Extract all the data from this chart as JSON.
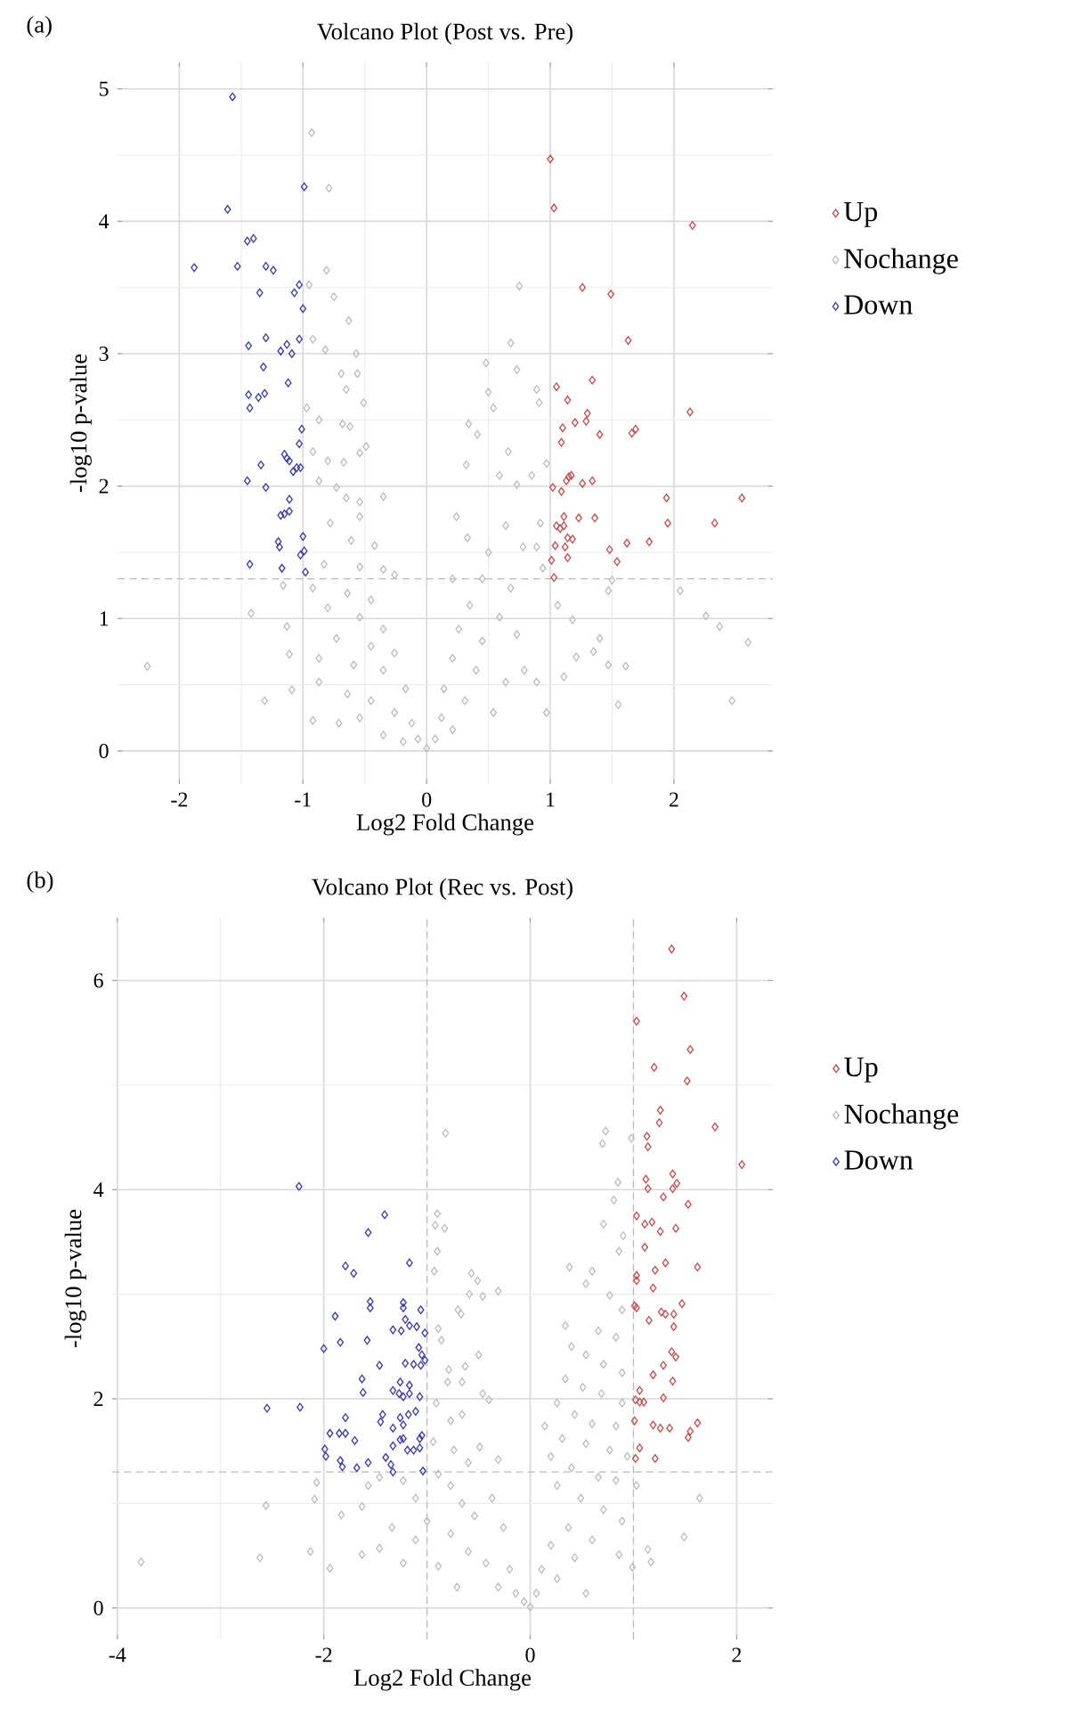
{
  "chart_data": [
    {
      "type": "scatter",
      "title": "Volcano Plot (Post vs. Pre)",
      "xlabel": "Log2 Fold Change",
      "ylabel": "-log10 p-value",
      "annotations": [
        "(a)"
      ],
      "xlim": [
        -2.5,
        2.8
      ],
      "ylim": [
        -0.25,
        5.2
      ],
      "xticks": [
        -2,
        -1,
        0,
        1,
        2
      ],
      "yticks": [
        0,
        1,
        2,
        3,
        4,
        5
      ],
      "grid": true,
      "legend": "right",
      "marker": "diamond",
      "ref_lines": [
        {
          "axis": "y",
          "value": 1.3,
          "color": "#bbbbbb",
          "line_style": "dashed"
        }
      ],
      "series": [
        {
          "name": "Up",
          "color": "#d04a4a",
          "x": [
            1.0,
            1.03,
            2.15,
            1.26,
            1.49,
            1.63,
            1.34,
            1.05,
            1.14,
            2.13,
            1.3,
            1.2,
            1.29,
            1.1,
            1.4,
            1.66,
            1.69,
            1.09,
            1.15,
            1.17,
            1.13,
            1.26,
            1.34,
            1.02,
            1.09,
            1.94,
            2.55,
            1.11,
            1.23,
            1.36,
            1.05,
            1.08,
            1.11,
            1.95,
            2.33,
            1.14,
            1.18,
            1.04,
            1.12,
            1.48,
            1.62,
            1.8,
            1.01,
            1.14,
            1.54,
            1.03
          ],
          "values": [
            4.47,
            4.1,
            3.97,
            3.5,
            3.45,
            3.1,
            2.8,
            2.75,
            2.65,
            2.56,
            2.55,
            2.48,
            2.49,
            2.44,
            2.39,
            2.4,
            2.43,
            2.33,
            2.07,
            2.08,
            2.04,
            2.02,
            2.04,
            1.99,
            1.96,
            1.91,
            1.91,
            1.77,
            1.76,
            1.76,
            1.7,
            1.68,
            1.7,
            1.72,
            1.72,
            1.61,
            1.6,
            1.55,
            1.54,
            1.52,
            1.57,
            1.58,
            1.44,
            1.46,
            1.43,
            1.31
          ]
        },
        {
          "name": "Nochange",
          "color": "#bdbdbd",
          "x": [
            -0.93,
            -0.79,
            -0.81,
            -0.95,
            -0.75,
            -0.63,
            -0.92,
            -0.82,
            -0.57,
            -0.69,
            -0.56,
            -0.65,
            -0.51,
            -0.97,
            -0.87,
            -0.68,
            -0.62,
            -0.49,
            -0.92,
            -0.8,
            -0.67,
            -0.54,
            -0.87,
            -0.73,
            -0.65,
            -0.35,
            -0.54,
            -0.54,
            -0.78,
            -0.61,
            -0.42,
            -0.83,
            -0.54,
            -0.35,
            -1.16,
            -0.92,
            -0.64,
            -0.45,
            -0.26,
            -1.42,
            -1.13,
            -0.8,
            -0.54,
            -0.35,
            -0.73,
            -0.45,
            -0.26,
            -1.11,
            -0.87,
            -0.59,
            -0.35,
            -0.17,
            -0.87,
            -0.64,
            -0.45,
            -0.26,
            -0.12,
            -0.07,
            0,
            -2.26,
            -1.31,
            -1.09,
            -0.92,
            -0.71,
            -0.54,
            -0.35,
            -0.19,
            0.75,
            0.68,
            0.48,
            0.73,
            0.5,
            0.54,
            0.34,
            0.41,
            0.66,
            0.32,
            0.59,
            0.73,
            0.24,
            0.33,
            0.64,
            0.5,
            0.78,
            0.21,
            0.45,
            0.68,
            0.35,
            0.59,
            0.26,
            0.45,
            0.73,
            0.21,
            0.4,
            0.64,
            0.14,
            0.31,
            0.54,
            0.12,
            0.21,
            0.07,
            0.89,
            0.91,
            0.97,
            0.85,
            0.92,
            0.89,
            0.94,
            1.5,
            1.47,
            2.05,
            1.06,
            1.18,
            2.26,
            2.37,
            2.6,
            1.4,
            1.11,
            1.21,
            1.35,
            1.47,
            1.61,
            1.55,
            2.47,
            0.97,
            0.89,
            0.79
          ],
          "values": [
            4.67,
            4.25,
            3.63,
            3.52,
            3.43,
            3.25,
            3.11,
            3.03,
            3.0,
            2.85,
            2.85,
            2.73,
            2.63,
            2.59,
            2.5,
            2.47,
            2.45,
            2.3,
            2.26,
            2.19,
            2.18,
            2.25,
            2.04,
            1.99,
            1.91,
            1.92,
            1.88,
            1.77,
            1.72,
            1.59,
            1.55,
            1.41,
            1.39,
            1.37,
            1.25,
            1.23,
            1.19,
            1.14,
            1.33,
            1.04,
            0.94,
            1.08,
            1.01,
            0.92,
            0.85,
            0.79,
            0.74,
            0.73,
            0.7,
            0.65,
            0.61,
            0.47,
            0.52,
            0.43,
            0.38,
            0.29,
            0.21,
            0.09,
            0.02,
            0.64,
            0.38,
            0.46,
            0.23,
            0.21,
            0.25,
            0.12,
            0.07,
            3.51,
            3.08,
            2.93,
            2.88,
            2.71,
            2.59,
            2.47,
            2.39,
            2.26,
            2.16,
            2.08,
            2.01,
            1.77,
            1.61,
            1.7,
            1.5,
            1.54,
            1.3,
            1.3,
            1.23,
            1.1,
            1.01,
            0.92,
            0.83,
            0.88,
            0.7,
            0.61,
            0.52,
            0.47,
            0.38,
            0.29,
            0.25,
            0.16,
            0.09,
            2.73,
            2.63,
            2.17,
            2.08,
            1.72,
            1.54,
            1.38,
            1.29,
            1.21,
            1.21,
            1.1,
            0.99,
            1.02,
            0.94,
            0.82,
            0.85,
            0.56,
            0.71,
            0.75,
            0.65,
            0.64,
            0.35,
            0.38,
            0.29,
            0.52,
            0.61
          ]
        },
        {
          "name": "Down",
          "color": "#3b3bb3",
          "x": [
            -1.57,
            -1.61,
            -1.88,
            -1.53,
            -1.45,
            -1.4,
            -1.3,
            -1.24,
            -1.35,
            -1.03,
            -1.07,
            -1.0,
            -1.44,
            -1.3,
            -1.18,
            -1.13,
            -1.09,
            -1.03,
            -1.32,
            -1.12,
            -1.44,
            -1.36,
            -1.31,
            -1.43,
            -1.01,
            -1.03,
            -1.15,
            -1.13,
            -1.11,
            -1.34,
            -1.05,
            -1.02,
            -1.08,
            -1.45,
            -1.3,
            -1.11,
            -1.11,
            -1.15,
            -1.18,
            -1.0,
            -1.2,
            -1.19,
            -0.99,
            -1.02,
            -1.43,
            -1.17,
            -0.98,
            -0.99
          ],
          "values": [
            4.94,
            4.09,
            3.65,
            3.66,
            3.85,
            3.87,
            3.66,
            3.63,
            3.46,
            3.52,
            3.46,
            3.34,
            3.06,
            3.12,
            3.02,
            3.07,
            3.0,
            3.11,
            2.9,
            2.78,
            2.69,
            2.67,
            2.7,
            2.59,
            2.43,
            2.32,
            2.24,
            2.21,
            2.19,
            2.16,
            2.14,
            2.14,
            2.11,
            2.04,
            1.99,
            1.9,
            1.81,
            1.79,
            1.78,
            1.62,
            1.58,
            1.54,
            1.51,
            1.48,
            1.41,
            1.38,
            1.35,
            4.26
          ]
        }
      ]
    },
    {
      "type": "scatter",
      "title": "Volcano Plot (Rec vs. Post)",
      "xlabel": "Log2 Fold Change",
      "ylabel": "-log10 p-value",
      "annotations": [
        "(b)"
      ],
      "xlim": [
        -4.05,
        2.35
      ],
      "ylim": [
        -0.3,
        6.6
      ],
      "xticks": [
        -4,
        -2,
        0,
        2
      ],
      "yticks": [
        0,
        2,
        4,
        6
      ],
      "grid": true,
      "legend": "right",
      "marker": "diamond",
      "ref_lines": [
        {
          "axis": "y",
          "value": 1.3,
          "color": "#bbbbbb",
          "line_style": "dashed"
        },
        {
          "axis": "x",
          "value": -1,
          "color": "#bbbbbb",
          "line_style": "dashed"
        },
        {
          "axis": "x",
          "value": 1,
          "color": "#bbbbbb",
          "line_style": "dashed"
        }
      ],
      "series": [
        {
          "name": "Up",
          "color": "#d04a4a",
          "x": [
            1.37,
            1.49,
            1.03,
            1.55,
            1.2,
            1.52,
            1.26,
            1.25,
            1.79,
            1.13,
            1.14,
            2.05,
            1.12,
            1.14,
            1.38,
            1.42,
            1.38,
            1.29,
            1.53,
            1.03,
            1.11,
            1.18,
            1.26,
            1.41,
            1.11,
            1.31,
            1.21,
            1.62,
            1.03,
            1.03,
            1.19,
            1.01,
            1.03,
            1.47,
            1.27,
            1.31,
            1.39,
            1.15,
            1.39,
            1.37,
            1.41,
            1.29,
            1.19,
            1.38,
            1.06,
            1.02,
            1.06,
            1.1,
            1.29,
            1.01,
            1.19,
            1.26,
            1.35,
            1.62,
            1.55,
            1.53,
            1.06,
            1.02,
            1.21
          ],
          "values": [
            6.3,
            5.85,
            5.61,
            5.34,
            5.17,
            5.04,
            4.76,
            4.64,
            4.6,
            4.51,
            4.41,
            4.24,
            4.1,
            4.01,
            4.15,
            4.06,
            4.01,
            3.93,
            3.86,
            3.75,
            3.67,
            3.69,
            3.6,
            3.63,
            3.45,
            3.3,
            3.23,
            3.26,
            3.18,
            3.13,
            3.06,
            2.89,
            2.87,
            2.91,
            2.83,
            2.81,
            2.81,
            2.75,
            2.69,
            2.45,
            2.4,
            2.32,
            2.23,
            2.17,
            2.08,
            1.99,
            1.97,
            1.97,
            2.01,
            1.79,
            1.75,
            1.72,
            1.72,
            1.77,
            1.69,
            1.63,
            1.53,
            1.43,
            1.43
          ]
        },
        {
          "name": "Nochange",
          "color": "#bdbdbd",
          "x": [
            -0.82,
            -0.92,
            -0.83,
            -0.9,
            -0.9,
            -0.93,
            -0.57,
            -0.51,
            -0.31,
            -0.59,
            -0.46,
            -0.7,
            -0.67,
            -0.89,
            -0.86,
            -0.5,
            -0.79,
            -0.63,
            -0.8,
            -0.66,
            -0.46,
            -0.4,
            -0.91,
            -0.77,
            -0.66,
            -0.94,
            -0.74,
            -0.49,
            -0.31,
            -0.6,
            -0.89,
            -1.23,
            -1.46,
            -1.57,
            -2.07,
            -2.09,
            -1.83,
            -2.56,
            -3.77,
            -2.62,
            -2.13,
            -1.94,
            -1.63,
            -1.34,
            -1.11,
            -1.0,
            -0.77,
            -0.66,
            -0.54,
            -0.37,
            -0.26,
            -0.77,
            -1.11,
            -1.46,
            -1.63,
            -1.23,
            -0.89,
            -0.6,
            -0.43,
            -0.2,
            -0.71,
            -0.31,
            -0.14,
            -0.06,
            0,
            0.73,
            0.7,
            0.98,
            0.85,
            0.81,
            0.71,
            0.9,
            0.86,
            0.38,
            0.6,
            0.54,
            0.77,
            0.89,
            0.34,
            0.66,
            0.83,
            0.4,
            0.54,
            0.71,
            0.89,
            0.34,
            0.51,
            0.69,
            0.89,
            0.26,
            0.43,
            0.6,
            0.83,
            0.14,
            0.31,
            0.54,
            0.77,
            0.94,
            0.2,
            0.4,
            0.66,
            0.83,
            1.03,
            1.64,
            0.26,
            0.49,
            0.71,
            0.89,
            0.37,
            0.6,
            1.49,
            1.14,
            1.17,
            0.99,
            0.2,
            0.43,
            0.11,
            0.26,
            0.06,
            0.86,
            0.54
          ],
          "values": [
            4.54,
            3.66,
            3.63,
            3.77,
            3.41,
            3.22,
            3.2,
            3.13,
            3.03,
            3.0,
            2.98,
            2.85,
            2.81,
            2.67,
            2.56,
            2.42,
            2.28,
            2.31,
            2.16,
            2.16,
            2.05,
            1.99,
            1.96,
            1.79,
            1.85,
            1.59,
            1.51,
            1.54,
            1.42,
            1.39,
            1.28,
            1.22,
            1.25,
            1.17,
            1.2,
            1.04,
            0.89,
            0.98,
            0.44,
            0.48,
            0.54,
            0.38,
            0.97,
            0.77,
            1.05,
            0.83,
            1.17,
            1.0,
            0.88,
            1.05,
            0.77,
            0.71,
            0.65,
            0.57,
            0.51,
            0.43,
            0.4,
            0.54,
            0.43,
            0.37,
            0.2,
            0.2,
            0.14,
            0.06,
            0.01,
            4.56,
            4.44,
            4.49,
            4.07,
            3.9,
            3.67,
            3.56,
            3.41,
            3.26,
            3.22,
            3.1,
            2.99,
            2.85,
            2.7,
            2.65,
            2.59,
            2.5,
            2.42,
            2.33,
            2.25,
            2.19,
            2.11,
            2.05,
            1.96,
            1.96,
            1.85,
            1.76,
            1.74,
            1.74,
            1.62,
            1.57,
            1.51,
            1.45,
            1.45,
            1.34,
            1.25,
            1.22,
            1.17,
            1.05,
            1.17,
            1.05,
            0.94,
            0.83,
            0.77,
            0.65,
            0.68,
            0.56,
            0.44,
            0.39,
            0.6,
            0.48,
            0.37,
            0.28,
            0.14,
            0.51,
            0.14
          ]
        },
        {
          "name": "Down",
          "color": "#3b3bb3",
          "x": [
            -2.24,
            -1.41,
            -1.57,
            -1.79,
            -1.71,
            -1.17,
            -1.55,
            -1.55,
            -1.23,
            -1.23,
            -1.89,
            -1.21,
            -1.17,
            -1.06,
            -1.33,
            -1.25,
            -1.1,
            -1.02,
            -1.84,
            -1.58,
            -2.0,
            -1.08,
            -1.05,
            -1.21,
            -1.13,
            -1.02,
            -1.06,
            -1.46,
            -1.63,
            -1.62,
            -1.26,
            -1.17,
            -1.33,
            -1.27,
            -1.23,
            -1.17,
            -1.07,
            -2.55,
            -2.23,
            -1.11,
            -1.18,
            -1.43,
            -1.45,
            -1.26,
            -1.79,
            -1.33,
            -1.23,
            -1.94,
            -1.85,
            -1.79,
            -1.05,
            -1.07,
            -1.26,
            -1.23,
            -1.7,
            -1.33,
            -1.99,
            -1.98,
            -1.19,
            -1.13,
            -1.07,
            -1.57,
            -1.4,
            -1.35,
            -1.33,
            -1.84,
            -1.82,
            -1.68,
            -1.04
          ],
          "values": [
            4.03,
            3.76,
            3.59,
            3.27,
            3.2,
            3.3,
            2.93,
            2.87,
            2.92,
            2.87,
            2.79,
            2.76,
            2.7,
            2.85,
            2.66,
            2.65,
            2.69,
            2.63,
            2.54,
            2.56,
            2.48,
            2.49,
            2.42,
            2.34,
            2.33,
            2.37,
            2.32,
            2.32,
            2.19,
            2.06,
            2.16,
            2.13,
            2.08,
            2.05,
            2.02,
            2.05,
            2.02,
            1.91,
            1.92,
            1.88,
            1.85,
            1.85,
            1.78,
            1.82,
            1.82,
            1.72,
            1.75,
            1.67,
            1.67,
            1.67,
            1.65,
            1.62,
            1.61,
            1.62,
            1.6,
            1.55,
            1.52,
            1.45,
            1.51,
            1.51,
            1.53,
            1.39,
            1.44,
            1.37,
            1.3,
            1.41,
            1.35,
            1.34,
            1.31
          ]
        }
      ]
    }
  ]
}
